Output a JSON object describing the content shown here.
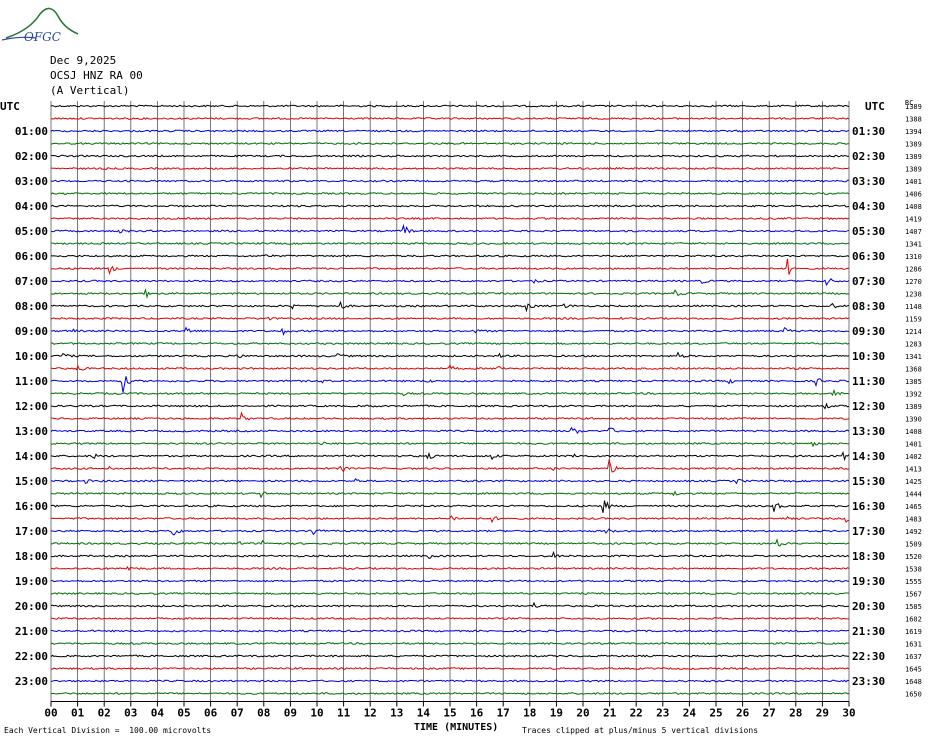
{
  "header": {
    "logo_text": "OFGC",
    "date": "Dec 9,2025",
    "station": "OCSJ HNZ RA 00",
    "component": "(A Vertical)"
  },
  "footer": {
    "division_note": "Each Vertical Division =  100.00 microvolts",
    "clip_note": "Traces clipped at plus/minus 5 vertical divisions",
    "xlabel": "TIME (MINUTES)",
    "corner_mark": "ʌ"
  },
  "chart_data": {
    "type": "helicorder",
    "xlabel": "TIME (MINUTES)",
    "xlim": [
      0,
      30
    ],
    "x_ticks": [
      "00",
      "01",
      "02",
      "03",
      "04",
      "05",
      "06",
      "07",
      "08",
      "09",
      "10",
      "11",
      "12",
      "13",
      "14",
      "15",
      "16",
      "17",
      "18",
      "19",
      "20",
      "21",
      "22",
      "23",
      "24",
      "25",
      "26",
      "27",
      "28",
      "29",
      "30"
    ],
    "left_axis_title": "UTC",
    "right_axis_title": "UTC",
    "rc_title": "RC",
    "left_hour_labels": [
      "01:00",
      "02:00",
      "03:00",
      "04:00",
      "05:00",
      "06:00",
      "07:00",
      "08:00",
      "09:00",
      "10:00",
      "11:00",
      "12:00",
      "13:00",
      "14:00",
      "15:00",
      "16:00",
      "17:00",
      "18:00",
      "19:00",
      "20:00",
      "21:00",
      "22:00",
      "23:00"
    ],
    "right_hour_labels": [
      "01:30",
      "02:30",
      "03:30",
      "04:30",
      "05:30",
      "06:30",
      "07:30",
      "08:30",
      "09:30",
      "10:30",
      "11:30",
      "12:30",
      "13:30",
      "14:30",
      "15:30",
      "16:30",
      "17:30",
      "18:30",
      "19:30",
      "20:30",
      "21:30",
      "22:30",
      "23:30"
    ],
    "trace_colors": [
      "#000000",
      "#e00000",
      "#0000e0",
      "#007000"
    ],
    "grid": true,
    "rc_values": [
      1389,
      1388,
      1394,
      1389,
      1389,
      1389,
      1401,
      1406,
      1408,
      1419,
      1407,
      1341,
      1310,
      1286,
      1270,
      1238,
      1148,
      1159,
      1214,
      1283,
      1341,
      1368,
      1385,
      1392,
      1389,
      1390,
      1408,
      1401,
      1402,
      1413,
      1425,
      1444,
      1465,
      1483,
      1492,
      1509,
      1520,
      1538,
      1555,
      1567,
      1585,
      1602,
      1619,
      1631,
      1637,
      1645,
      1648,
      1650
    ],
    "events": [
      {
        "row": 10,
        "minute": 2.6,
        "amp": 5
      },
      {
        "row": 10,
        "minute": 13.3,
        "amp": 6
      },
      {
        "row": 12,
        "minute": 8.1,
        "amp": 2
      },
      {
        "row": 13,
        "minute": 2.2,
        "amp": 6
      },
      {
        "row": 13,
        "minute": 27.7,
        "amp": 9
      },
      {
        "row": 14,
        "minute": 18.1,
        "amp": 3
      },
      {
        "row": 14,
        "minute": 24.4,
        "amp": 4
      },
      {
        "row": 14,
        "minute": 29.2,
        "amp": 5
      },
      {
        "row": 15,
        "minute": 3.6,
        "amp": 3
      },
      {
        "row": 15,
        "minute": 23.5,
        "amp": 3
      },
      {
        "row": 16,
        "minute": 9.1,
        "amp": 3
      },
      {
        "row": 16,
        "minute": 10.9,
        "amp": 4
      },
      {
        "row": 16,
        "minute": 17.9,
        "amp": 5
      },
      {
        "row": 16,
        "minute": 19.3,
        "amp": 4
      },
      {
        "row": 16,
        "minute": 29.3,
        "amp": 5
      },
      {
        "row": 17,
        "minute": 8.1,
        "amp": 2
      },
      {
        "row": 17,
        "minute": 21.2,
        "amp": 3
      },
      {
        "row": 18,
        "minute": 0.8,
        "amp": 2
      },
      {
        "row": 18,
        "minute": 5.1,
        "amp": 5
      },
      {
        "row": 18,
        "minute": 8.7,
        "amp": 4
      },
      {
        "row": 18,
        "minute": 16.0,
        "amp": 2
      },
      {
        "row": 18,
        "minute": 27.6,
        "amp": 4
      },
      {
        "row": 20,
        "minute": 0.5,
        "amp": 3
      },
      {
        "row": 20,
        "minute": 7.0,
        "amp": 3
      },
      {
        "row": 20,
        "minute": 10.8,
        "amp": 3
      },
      {
        "row": 20,
        "minute": 16.8,
        "amp": 3
      },
      {
        "row": 20,
        "minute": 23.6,
        "amp": 3
      },
      {
        "row": 21,
        "minute": 1.0,
        "amp": 5
      },
      {
        "row": 21,
        "minute": 15.0,
        "amp": 3
      },
      {
        "row": 21,
        "minute": 16.8,
        "amp": 6
      },
      {
        "row": 22,
        "minute": 2.7,
        "amp": 12
      },
      {
        "row": 22,
        "minute": 10.1,
        "amp": 3
      },
      {
        "row": 22,
        "minute": 14.2,
        "amp": 2
      },
      {
        "row": 22,
        "minute": 25.5,
        "amp": 3
      },
      {
        "row": 22,
        "minute": 28.8,
        "amp": 4
      },
      {
        "row": 23,
        "minute": 13.2,
        "amp": 2
      },
      {
        "row": 23,
        "minute": 29.4,
        "amp": 3
      },
      {
        "row": 24,
        "minute": 11.9,
        "amp": 3
      },
      {
        "row": 24,
        "minute": 29.1,
        "amp": 3
      },
      {
        "row": 25,
        "minute": 7.2,
        "amp": 5
      },
      {
        "row": 26,
        "minute": 19.6,
        "amp": 8
      },
      {
        "row": 26,
        "minute": 21.0,
        "amp": 5
      },
      {
        "row": 27,
        "minute": 10.1,
        "amp": 2
      },
      {
        "row": 27,
        "minute": 28.6,
        "amp": 3
      },
      {
        "row": 28,
        "minute": 1.6,
        "amp": 3
      },
      {
        "row": 28,
        "minute": 14.2,
        "amp": 3
      },
      {
        "row": 28,
        "minute": 16.6,
        "amp": 3
      },
      {
        "row": 28,
        "minute": 19.6,
        "amp": 4
      },
      {
        "row": 28,
        "minute": 29.8,
        "amp": 4
      },
      {
        "row": 29,
        "minute": 2.2,
        "amp": 2
      },
      {
        "row": 29,
        "minute": 10.9,
        "amp": 5
      },
      {
        "row": 29,
        "minute": 18.8,
        "amp": 3
      },
      {
        "row": 29,
        "minute": 21.0,
        "amp": 9
      },
      {
        "row": 30,
        "minute": 1.3,
        "amp": 2
      },
      {
        "row": 30,
        "minute": 11.4,
        "amp": 3
      },
      {
        "row": 30,
        "minute": 25.8,
        "amp": 2
      },
      {
        "row": 31,
        "minute": 7.9,
        "amp": 3
      },
      {
        "row": 31,
        "minute": 23.4,
        "amp": 3
      },
      {
        "row": 32,
        "minute": 20.8,
        "amp": 7
      },
      {
        "row": 32,
        "minute": 27.2,
        "amp": 6
      },
      {
        "row": 33,
        "minute": 15.1,
        "amp": 3
      },
      {
        "row": 33,
        "minute": 16.6,
        "amp": 3
      },
      {
        "row": 33,
        "minute": 27.7,
        "amp": 3
      },
      {
        "row": 33,
        "minute": 29.9,
        "amp": 3
      },
      {
        "row": 34,
        "minute": 4.6,
        "amp": 7
      },
      {
        "row": 34,
        "minute": 9.9,
        "amp": 7
      },
      {
        "row": 34,
        "minute": 20.9,
        "amp": 3
      },
      {
        "row": 35,
        "minute": 7.0,
        "amp": 3
      },
      {
        "row": 35,
        "minute": 8.0,
        "amp": 3
      },
      {
        "row": 35,
        "minute": 27.3,
        "amp": 6
      },
      {
        "row": 36,
        "minute": 14.2,
        "amp": 3
      },
      {
        "row": 36,
        "minute": 18.9,
        "amp": 3
      },
      {
        "row": 37,
        "minute": 2.9,
        "amp": 4
      },
      {
        "row": 40,
        "minute": 18.2,
        "amp": 3
      }
    ]
  }
}
